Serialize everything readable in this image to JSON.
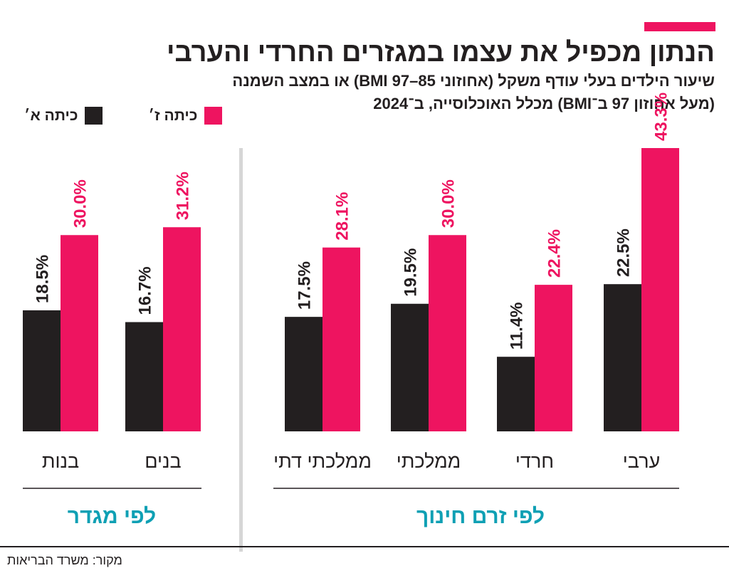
{
  "accent_color": "#ee1460",
  "title": "הנתון מכפיל את עצמו במגזרים החרדי והערבי",
  "subtitle": [
    "שיעור הילדים בעלי עודף משקל (אחוזוני BMI 97–85) או במצב השמנה",
    "(מעל אחוזון 97 ב־BMI) מכלל האוכלוסייה, ב־2024"
  ],
  "legend": {
    "grade7": {
      "label": "כיתה ז׳",
      "color": "#ee1460"
    },
    "grade1": {
      "label": "כיתה א׳",
      "color": "#231f20"
    }
  },
  "source": "מקור: משרד הבריאות",
  "chart_data": [
    {
      "type": "bar",
      "group_label": "לפי זרם חינוך",
      "categories": [
        "ערבי",
        "חרדי",
        "ממלכתי",
        "ממלכתי דתי"
      ],
      "series": [
        {
          "name": "כיתה א׳",
          "color": "#231f20",
          "values": [
            22.5,
            11.4,
            19.5,
            17.5
          ],
          "labels": [
            "22.5%",
            "11.4%",
            "19.5%",
            "17.5%"
          ]
        },
        {
          "name": "כיתה ז׳",
          "color": "#ee1460",
          "values": [
            43.3,
            22.4,
            30.0,
            28.1
          ],
          "labels": [
            "43.3%",
            "22.4%",
            "30.0%",
            "28.1%"
          ]
        }
      ],
      "ylim": [
        0,
        43.3
      ]
    },
    {
      "type": "bar",
      "group_label": "לפי מגדר",
      "categories": [
        "בנים",
        "בנות"
      ],
      "series": [
        {
          "name": "כיתה א׳",
          "color": "#231f20",
          "values": [
            16.7,
            18.5
          ],
          "labels": [
            "16.7%",
            "18.5%"
          ]
        },
        {
          "name": "כיתה ז׳",
          "color": "#ee1460",
          "values": [
            31.2,
            30.0
          ],
          "labels": [
            "31.2%",
            "30.0%"
          ]
        }
      ],
      "ylim": [
        0,
        43.3
      ]
    }
  ]
}
